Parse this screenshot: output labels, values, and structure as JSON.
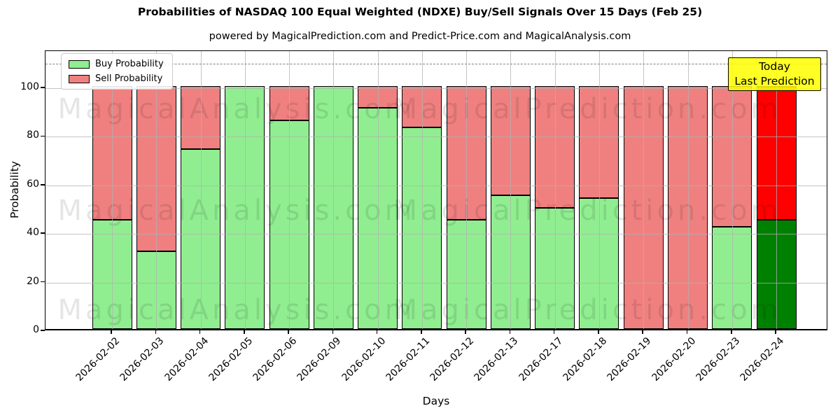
{
  "title": "Probabilities of NASDAQ 100 Equal Weighted (NDXE) Buy/Sell Signals Over 15 Days (Feb 25)",
  "subtitle": "powered by MagicalPrediction.com and Predict-Price.com and MagicalAnalysis.com",
  "axes": {
    "ylabel": "Probability",
    "xlabel": "Days",
    "yticks": [
      0,
      20,
      40,
      60,
      80,
      100
    ],
    "ylim": [
      0,
      115
    ],
    "grid": true,
    "dashed_line_y": 110,
    "dashed_line_color": "#808080"
  },
  "legend": [
    {
      "label": "Buy Probability",
      "color": "#90EE90"
    },
    {
      "label": "Sell Probability",
      "color": "#F08080"
    }
  ],
  "annotation": {
    "line1": "Today",
    "line2": "Last Prediction",
    "bg_color": "#FFFF00"
  },
  "watermarks": {
    "left_text": "MagicalAnalysis.com",
    "right_text": "MagicalPrediction.com",
    "color": "rgba(0,0,0,0.10)"
  },
  "chart_data": {
    "type": "bar",
    "stacked": true,
    "legend_position": "upper left",
    "categories": [
      "2026-02-02",
      "2026-02-03",
      "2026-02-04",
      "2026-02-05",
      "2026-02-06",
      "2026-02-09",
      "2026-02-10",
      "2026-02-11",
      "2026-02-12",
      "2026-02-13",
      "2026-02-17",
      "2026-02-18",
      "2026-02-19",
      "2026-02-20",
      "2026-02-23",
      "2026-02-24"
    ],
    "series": [
      {
        "name": "Buy Probability",
        "color": "#90EE90",
        "values": [
          45,
          32,
          74,
          100,
          86,
          100,
          91,
          83,
          45,
          55,
          50,
          54,
          0,
          0,
          42,
          45
        ]
      },
      {
        "name": "Sell Probability",
        "color": "#F08080",
        "values": [
          55,
          68,
          26,
          0,
          14,
          0,
          9,
          17,
          55,
          45,
          50,
          46,
          100,
          100,
          58,
          55
        ]
      }
    ],
    "today_index": 15,
    "today_colors": {
      "buy": "#008000",
      "sell": "#FF0000"
    },
    "bar_edge_color": "#000000"
  }
}
